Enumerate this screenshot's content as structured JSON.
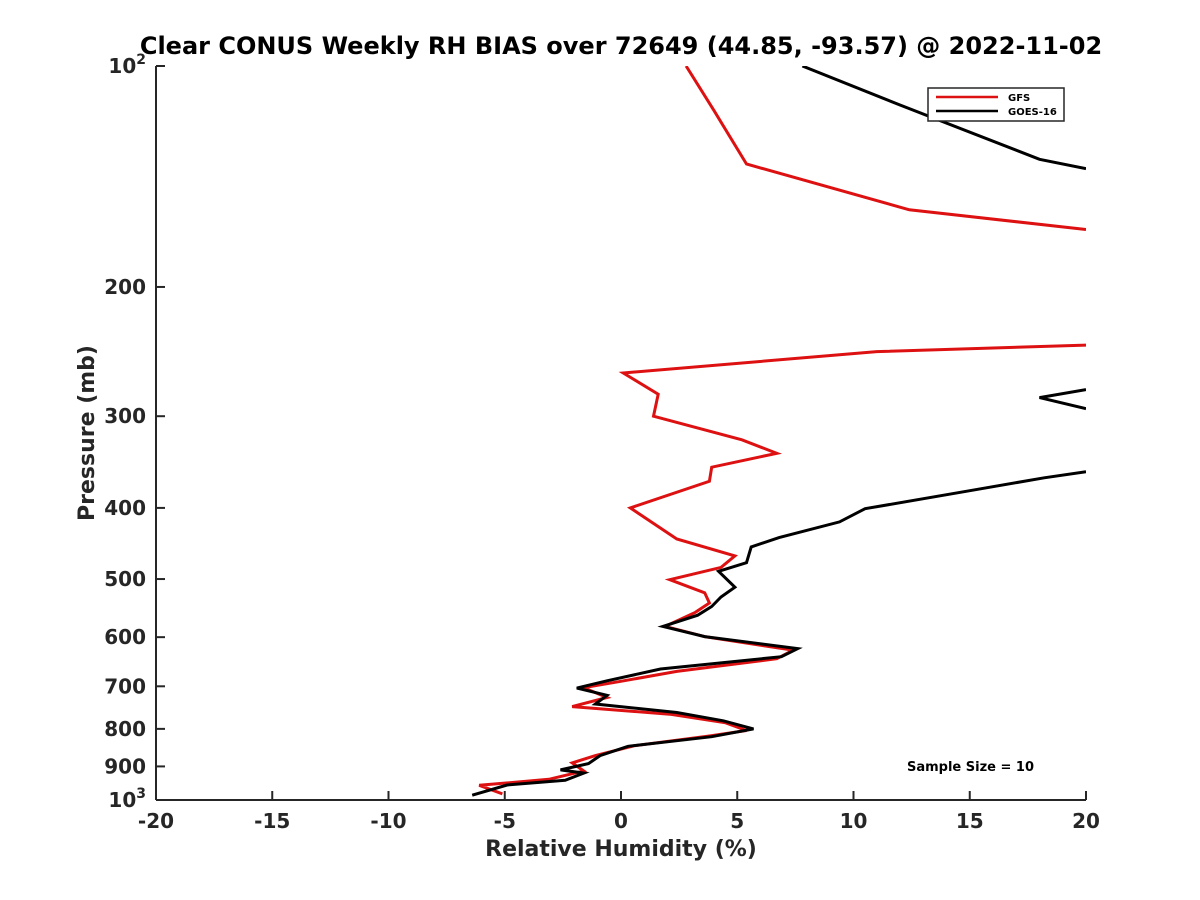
{
  "chart_data": {
    "type": "line",
    "title": "Clear CONUS Weekly RH BIAS over 72649 (44.85, -93.57) @ 2022-11-02",
    "xlabel": "Relative Humidity (%)",
    "ylabel": "Pressure (mb)",
    "xlim": [
      -20,
      20
    ],
    "ylim": [
      100,
      1000
    ],
    "yscale": "log",
    "yreverse": true,
    "x_ticks": [
      -20,
      -15,
      -10,
      -5,
      0,
      5,
      10,
      15,
      20
    ],
    "x_tick_labels": [
      "-20",
      "-15",
      "-10",
      "-5",
      "0",
      "5",
      "10",
      "15",
      "20"
    ],
    "y_ticks": [
      100,
      200,
      300,
      400,
      500,
      600,
      700,
      800,
      900,
      1000
    ],
    "y_tick_labels": [
      {
        "base": "10",
        "exp": "2"
      },
      {
        "base": "200",
        "exp": ""
      },
      {
        "base": "300",
        "exp": ""
      },
      {
        "base": "400",
        "exp": ""
      },
      {
        "base": "500",
        "exp": ""
      },
      {
        "base": "600",
        "exp": ""
      },
      {
        "base": "700",
        "exp": ""
      },
      {
        "base": "800",
        "exp": ""
      },
      {
        "base": "900",
        "exp": ""
      },
      {
        "base": "10",
        "exp": "3"
      }
    ],
    "legend_position": "top-right",
    "annotation": "Sample Size = 10",
    "series": [
      {
        "name": "GFS",
        "color": "#dd1111",
        "segments": [
          [
            [
              2.8,
              100
            ],
            [
              4.0,
              115
            ],
            [
              5.4,
              136
            ],
            [
              12.4,
              157
            ],
            [
              20.0,
              167
            ]
          ],
          [
            [
              20.0,
              240
            ],
            [
              11.0,
              245
            ],
            [
              0.1,
              262
            ],
            [
              1.6,
              280
            ],
            [
              1.4,
              300
            ],
            [
              5.2,
              323
            ],
            [
              6.7,
              337
            ],
            [
              3.9,
              352
            ],
            [
              3.8,
              368
            ],
            [
              0.4,
              400
            ],
            [
              2.4,
              441
            ],
            [
              4.9,
              465
            ],
            [
              4.3,
              482
            ],
            [
              2.1,
              501
            ],
            [
              3.6,
              522
            ],
            [
              3.8,
              539
            ],
            [
              3.2,
              555
            ],
            [
              1.9,
              580
            ],
            [
              3.6,
              599
            ],
            [
              7.4,
              625
            ],
            [
              6.7,
              642
            ],
            [
              2.4,
              668
            ],
            [
              -0.1,
              690
            ],
            [
              -1.6,
              703
            ],
            [
              -0.6,
              725
            ],
            [
              -2.1,
              746
            ],
            [
              2.1,
              764
            ],
            [
              4.5,
              785
            ],
            [
              5.4,
              804
            ],
            [
              3.8,
              818
            ],
            [
              0.6,
              843
            ],
            [
              -1.1,
              870
            ],
            [
              -2.1,
              890
            ],
            [
              -1.6,
              913
            ],
            [
              -3.1,
              937
            ],
            [
              -6.1,
              955
            ],
            [
              -5.1,
              981
            ]
          ]
        ]
      },
      {
        "name": "GOES-16",
        "color": "#000000",
        "segments": [
          [
            [
              7.8,
              100
            ],
            [
              12.0,
              113
            ],
            [
              18.0,
              134
            ],
            [
              20.0,
              138
            ]
          ],
          [
            [
              20.0,
              276
            ],
            [
              18.0,
              283
            ],
            [
              20.0,
              293
            ]
          ],
          [
            [
              20.0,
              357
            ],
            [
              18.2,
              364
            ],
            [
              15.0,
              379
            ],
            [
              10.5,
              401
            ],
            [
              9.4,
              418
            ],
            [
              6.8,
              439
            ],
            [
              5.6,
              452
            ],
            [
              5.4,
              475
            ],
            [
              4.2,
              488
            ],
            [
              4.9,
              513
            ],
            [
              4.3,
              529
            ],
            [
              3.9,
              545
            ],
            [
              3.3,
              560
            ],
            [
              1.8,
              580
            ],
            [
              3.6,
              599
            ],
            [
              7.6,
              622
            ],
            [
              6.9,
              638
            ],
            [
              1.7,
              663
            ],
            [
              -0.6,
              688
            ],
            [
              -1.9,
              704
            ],
            [
              -0.6,
              720
            ],
            [
              -1.1,
              740
            ],
            [
              2.4,
              760
            ],
            [
              4.4,
              780
            ],
            [
              5.7,
              800
            ],
            [
              3.9,
              820
            ],
            [
              0.3,
              845
            ],
            [
              -0.9,
              870
            ],
            [
              -1.4,
              892
            ],
            [
              -2.6,
              910
            ],
            [
              -1.6,
              919
            ],
            [
              -2.4,
              940
            ],
            [
              -4.9,
              954
            ],
            [
              -6.4,
              985
            ]
          ]
        ]
      }
    ]
  }
}
